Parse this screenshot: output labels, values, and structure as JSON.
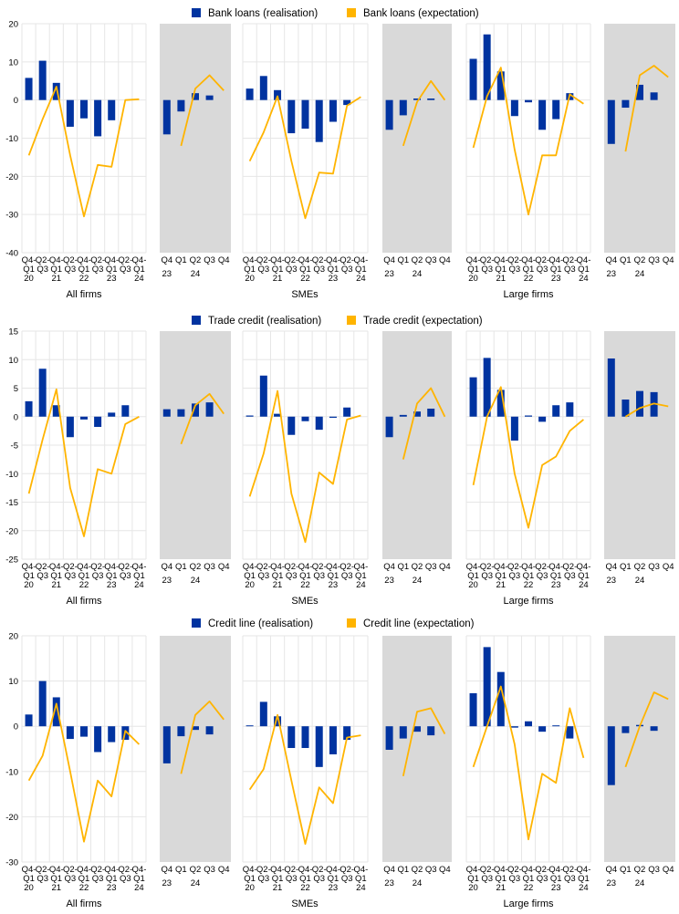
{
  "colors": {
    "realisation": "#0033a0",
    "expectation": "#ffb400",
    "shaded_panel": "#d9d9d9",
    "grid": "#e6e6e6"
  },
  "chart_data": [
    {
      "type": "bar",
      "legend": [
        "Bank loans (realisation)",
        "Bank loans (expectation)"
      ],
      "ylim": [
        -40,
        20
      ],
      "yticks": [
        20,
        10,
        0,
        -10,
        -20,
        -30,
        -40
      ],
      "panels": [
        {
          "group": "All firms",
          "historical": {
            "categories": [
              [
                "Q4-",
                "Q1",
                "20"
              ],
              [
                "Q2-",
                "Q3",
                "21"
              ],
              [
                "Q4-",
                "Q1",
                "21"
              ],
              [
                "Q2-",
                "Q3",
                "22"
              ],
              [
                "Q4-",
                "Q1",
                "22"
              ],
              [
                "Q2-",
                "Q3",
                "23"
              ],
              [
                "Q4-",
                "Q1",
                "23"
              ],
              [
                "Q2-",
                "Q3",
                "24"
              ],
              [
                "Q4-",
                "Q1",
                "24"
              ]
            ],
            "realisation": [
              5.8,
              10.3,
              4.5,
              -7.0,
              -4.8,
              -9.5,
              -5.3,
              null,
              null
            ],
            "expectation": [
              -14.5,
              -5.0,
              3.5,
              -14.5,
              -30.5,
              -17.0,
              -17.5,
              0.0,
              0.2
            ]
          },
          "latest": {
            "categories": [
              "Q4",
              "Q1",
              "Q2",
              "Q3",
              "Q4"
            ],
            "year_labels": [
              "23",
              "24"
            ],
            "realisation": [
              -9.0,
              -3.0,
              1.8,
              1.2,
              null
            ],
            "expectation": [
              null,
              -12.0,
              3.0,
              6.5,
              2.5
            ]
          }
        },
        {
          "group": "SMEs",
          "historical": {
            "categories": [
              [
                "Q4-",
                "Q1",
                "20"
              ],
              [
                "Q2-",
                "Q3",
                "21"
              ],
              [
                "Q4-",
                "Q1",
                "21"
              ],
              [
                "Q2-",
                "Q3",
                "22"
              ],
              [
                "Q4-",
                "Q1",
                "22"
              ],
              [
                "Q2-",
                "Q3",
                "23"
              ],
              [
                "Q4-",
                "Q1",
                "23"
              ],
              [
                "Q2-",
                "Q3",
                "24"
              ],
              [
                "Q4-",
                "Q1",
                "24"
              ]
            ],
            "realisation": [
              3.0,
              6.3,
              2.6,
              -8.7,
              -7.5,
              -11.0,
              -5.7,
              -1.3,
              null
            ],
            "expectation": [
              -16.0,
              -8.5,
              1.0,
              -16.0,
              -31.0,
              -19.0,
              -19.3,
              -1.5,
              0.8
            ]
          },
          "latest": {
            "categories": [
              "Q4",
              "Q1",
              "Q2",
              "Q3",
              "Q4"
            ],
            "year_labels": [
              "23",
              "24"
            ],
            "realisation": [
              -7.8,
              -4.0,
              0.4,
              0.4,
              null
            ],
            "expectation": [
              null,
              -12.0,
              -0.5,
              5.0,
              0.0
            ]
          }
        },
        {
          "group": "Large firms",
          "historical": {
            "categories": [
              [
                "Q4-",
                "Q1",
                "20"
              ],
              [
                "Q2-",
                "Q3",
                "21"
              ],
              [
                "Q4-",
                "Q1",
                "21"
              ],
              [
                "Q2-",
                "Q3",
                "22"
              ],
              [
                "Q4-",
                "Q1",
                "22"
              ],
              [
                "Q2-",
                "Q3",
                "23"
              ],
              [
                "Q4-",
                "Q1",
                "23"
              ],
              [
                "Q2-",
                "Q3",
                "24"
              ],
              [
                "Q4-",
                "Q1",
                "24"
              ]
            ],
            "realisation": [
              10.8,
              17.2,
              7.5,
              -4.2,
              -0.6,
              -7.8,
              -5.0,
              1.8,
              null
            ],
            "expectation": [
              -12.5,
              1.0,
              8.5,
              -13.0,
              -30.0,
              -14.5,
              -14.5,
              1.5,
              -1.0
            ]
          },
          "latest": {
            "categories": [
              "Q4",
              "Q1",
              "Q2",
              "Q3",
              "Q4"
            ],
            "year_labels": [
              "23",
              "24"
            ],
            "realisation": [
              -11.5,
              -2.0,
              4.0,
              2.0,
              null
            ],
            "expectation": [
              null,
              -13.5,
              6.5,
              9.0,
              6.0
            ]
          }
        }
      ]
    },
    {
      "type": "bar",
      "legend": [
        "Trade credit (realisation)",
        "Trade credit (expectation)"
      ],
      "ylim": [
        -25,
        15
      ],
      "yticks": [
        15,
        10,
        5,
        0,
        -5,
        -10,
        -15,
        -20,
        -25
      ],
      "panels": [
        {
          "group": "All firms",
          "historical": {
            "categories": [
              [
                "Q4-",
                "Q1",
                "20"
              ],
              [
                "Q2-",
                "Q3",
                "21"
              ],
              [
                "Q4-",
                "Q1",
                "21"
              ],
              [
                "Q2-",
                "Q3",
                "22"
              ],
              [
                "Q4-",
                "Q1",
                "22"
              ],
              [
                "Q2-",
                "Q3",
                "23"
              ],
              [
                "Q4-",
                "Q1",
                "23"
              ],
              [
                "Q2-",
                "Q3",
                "24"
              ],
              [
                "Q4-",
                "Q1",
                "24"
              ]
            ],
            "realisation": [
              2.7,
              8.4,
              2.0,
              -3.6,
              -0.5,
              -1.8,
              0.7,
              2.0,
              null
            ],
            "expectation": [
              -13.5,
              -4.0,
              4.8,
              -12.5,
              -21.0,
              -9.2,
              -10.0,
              -1.3,
              0.0
            ]
          },
          "latest": {
            "categories": [
              "Q4",
              "Q1",
              "Q2",
              "Q3",
              "Q4"
            ],
            "year_labels": [
              "23",
              "24"
            ],
            "realisation": [
              1.3,
              1.3,
              2.3,
              2.5,
              null
            ],
            "expectation": [
              null,
              -4.8,
              2.0,
              4.0,
              0.5
            ]
          }
        },
        {
          "group": "SMEs",
          "historical": {
            "categories": [
              [
                "Q4-",
                "Q1",
                "20"
              ],
              [
                "Q2-",
                "Q3",
                "21"
              ],
              [
                "Q4-",
                "Q1",
                "21"
              ],
              [
                "Q2-",
                "Q3",
                "22"
              ],
              [
                "Q4-",
                "Q1",
                "22"
              ],
              [
                "Q2-",
                "Q3",
                "23"
              ],
              [
                "Q4-",
                "Q1",
                "23"
              ],
              [
                "Q2-",
                "Q3",
                "24"
              ],
              [
                "Q4-",
                "Q1",
                "24"
              ]
            ],
            "realisation": [
              0.2,
              7.2,
              0.5,
              -3.2,
              -0.8,
              -2.3,
              -0.2,
              1.6,
              null
            ],
            "expectation": [
              -14.0,
              -6.5,
              4.5,
              -13.5,
              -22.0,
              -9.8,
              -11.8,
              -0.5,
              0.2
            ]
          },
          "latest": {
            "categories": [
              "Q4",
              "Q1",
              "Q2",
              "Q3",
              "Q4"
            ],
            "year_labels": [
              "23",
              "24"
            ],
            "realisation": [
              -3.6,
              0.3,
              0.9,
              1.4,
              null
            ],
            "expectation": [
              null,
              -7.5,
              2.3,
              5.0,
              0.0
            ]
          }
        },
        {
          "group": "Large firms",
          "historical": {
            "categories": [
              [
                "Q4-",
                "Q1",
                "20"
              ],
              [
                "Q2-",
                "Q3",
                "21"
              ],
              [
                "Q4-",
                "Q1",
                "21"
              ],
              [
                "Q2-",
                "Q3",
                "22"
              ],
              [
                "Q4-",
                "Q1",
                "22"
              ],
              [
                "Q2-",
                "Q3",
                "23"
              ],
              [
                "Q4-",
                "Q1",
                "23"
              ],
              [
                "Q2-",
                "Q3",
                "24"
              ],
              [
                "Q4-",
                "Q1",
                "24"
              ]
            ],
            "realisation": [
              6.9,
              10.3,
              4.7,
              -4.2,
              0.2,
              -0.9,
              2.0,
              2.5,
              null
            ],
            "expectation": [
              -12.0,
              0.0,
              5.2,
              -10.0,
              -19.5,
              -8.5,
              -7.0,
              -2.5,
              -0.5
            ]
          },
          "latest": {
            "categories": [
              "Q4",
              "Q1",
              "Q2",
              "Q3",
              "Q4"
            ],
            "year_labels": [
              "23",
              "24"
            ],
            "realisation": [
              10.2,
              3.0,
              4.5,
              4.3,
              null
            ],
            "expectation": [
              null,
              0.0,
              1.5,
              2.3,
              1.8
            ]
          }
        }
      ]
    },
    {
      "type": "bar",
      "legend": [
        "Credit line (realisation)",
        "Credit line (expectation)"
      ],
      "ylim": [
        -30,
        20
      ],
      "yticks": [
        20,
        10,
        0,
        -10,
        -20,
        -30
      ],
      "panels": [
        {
          "group": "All firms",
          "historical": {
            "categories": [
              [
                "Q4-",
                "Q1",
                "20"
              ],
              [
                "Q2-",
                "Q3",
                "21"
              ],
              [
                "Q4-",
                "Q1",
                "21"
              ],
              [
                "Q2-",
                "Q3",
                "22"
              ],
              [
                "Q4-",
                "Q1",
                "22"
              ],
              [
                "Q2-",
                "Q3",
                "23"
              ],
              [
                "Q4-",
                "Q1",
                "23"
              ],
              [
                "Q2-",
                "Q3",
                "24"
              ],
              [
                "Q4-",
                "Q1",
                "24"
              ]
            ],
            "realisation": [
              2.6,
              10.0,
              6.4,
              -2.8,
              -2.3,
              -5.7,
              -3.5,
              -3.0,
              null
            ],
            "expectation": [
              -12.0,
              -6.5,
              5.0,
              -10.0,
              -25.5,
              -12.0,
              -15.5,
              -1.0,
              -4.0
            ]
          },
          "latest": {
            "categories": [
              "Q4",
              "Q1",
              "Q2",
              "Q3",
              "Q4"
            ],
            "year_labels": [
              "23",
              "24"
            ],
            "realisation": [
              -8.2,
              -2.2,
              -0.8,
              -1.8,
              null
            ],
            "expectation": [
              null,
              -10.5,
              2.5,
              5.5,
              1.5
            ]
          }
        },
        {
          "group": "SMEs",
          "historical": {
            "categories": [
              [
                "Q4-",
                "Q1",
                "20"
              ],
              [
                "Q2-",
                "Q3",
                "21"
              ],
              [
                "Q4-",
                "Q1",
                "21"
              ],
              [
                "Q2-",
                "Q3",
                "22"
              ],
              [
                "Q4-",
                "Q1",
                "22"
              ],
              [
                "Q2-",
                "Q3",
                "23"
              ],
              [
                "Q4-",
                "Q1",
                "23"
              ],
              [
                "Q2-",
                "Q3",
                "24"
              ],
              [
                "Q4-",
                "Q1",
                "24"
              ]
            ],
            "realisation": [
              0.2,
              5.4,
              2.2,
              -4.8,
              -4.8,
              -9.0,
              -6.2,
              -3.0,
              null
            ],
            "expectation": [
              -14.0,
              -9.5,
              2.5,
              -12.0,
              -26.0,
              -13.5,
              -17.0,
              -2.5,
              -2.0
            ]
          },
          "latest": {
            "categories": [
              "Q4",
              "Q1",
              "Q2",
              "Q3",
              "Q4"
            ],
            "year_labels": [
              "23",
              "24"
            ],
            "realisation": [
              -5.2,
              -2.7,
              -1.2,
              -2.0,
              null
            ],
            "expectation": [
              null,
              -11.0,
              3.2,
              4.0,
              -1.7
            ]
          }
        },
        {
          "group": "Large firms",
          "historical": {
            "categories": [
              [
                "Q4-",
                "Q1",
                "20"
              ],
              [
                "Q2-",
                "Q3",
                "21"
              ],
              [
                "Q4-",
                "Q1",
                "21"
              ],
              [
                "Q2-",
                "Q3",
                "22"
              ],
              [
                "Q4-",
                "Q1",
                "22"
              ],
              [
                "Q2-",
                "Q3",
                "23"
              ],
              [
                "Q4-",
                "Q1",
                "23"
              ],
              [
                "Q2-",
                "Q3",
                "24"
              ],
              [
                "Q4-",
                "Q1",
                "24"
              ]
            ],
            "realisation": [
              7.3,
              17.5,
              12.0,
              -0.3,
              1.1,
              -1.2,
              0.2,
              -2.7,
              null
            ],
            "expectation": [
              -9.0,
              0.0,
              8.8,
              -4.0,
              -25.0,
              -10.5,
              -12.5,
              4.0,
              -7.0
            ]
          },
          "latest": {
            "categories": [
              "Q4",
              "Q1",
              "Q2",
              "Q3",
              "Q4"
            ],
            "year_labels": [
              "23",
              "24"
            ],
            "realisation": [
              -13.0,
              -1.5,
              0.3,
              -1.0,
              null
            ],
            "expectation": [
              null,
              -9.0,
              0.0,
              7.5,
              6.0
            ]
          }
        }
      ]
    }
  ]
}
